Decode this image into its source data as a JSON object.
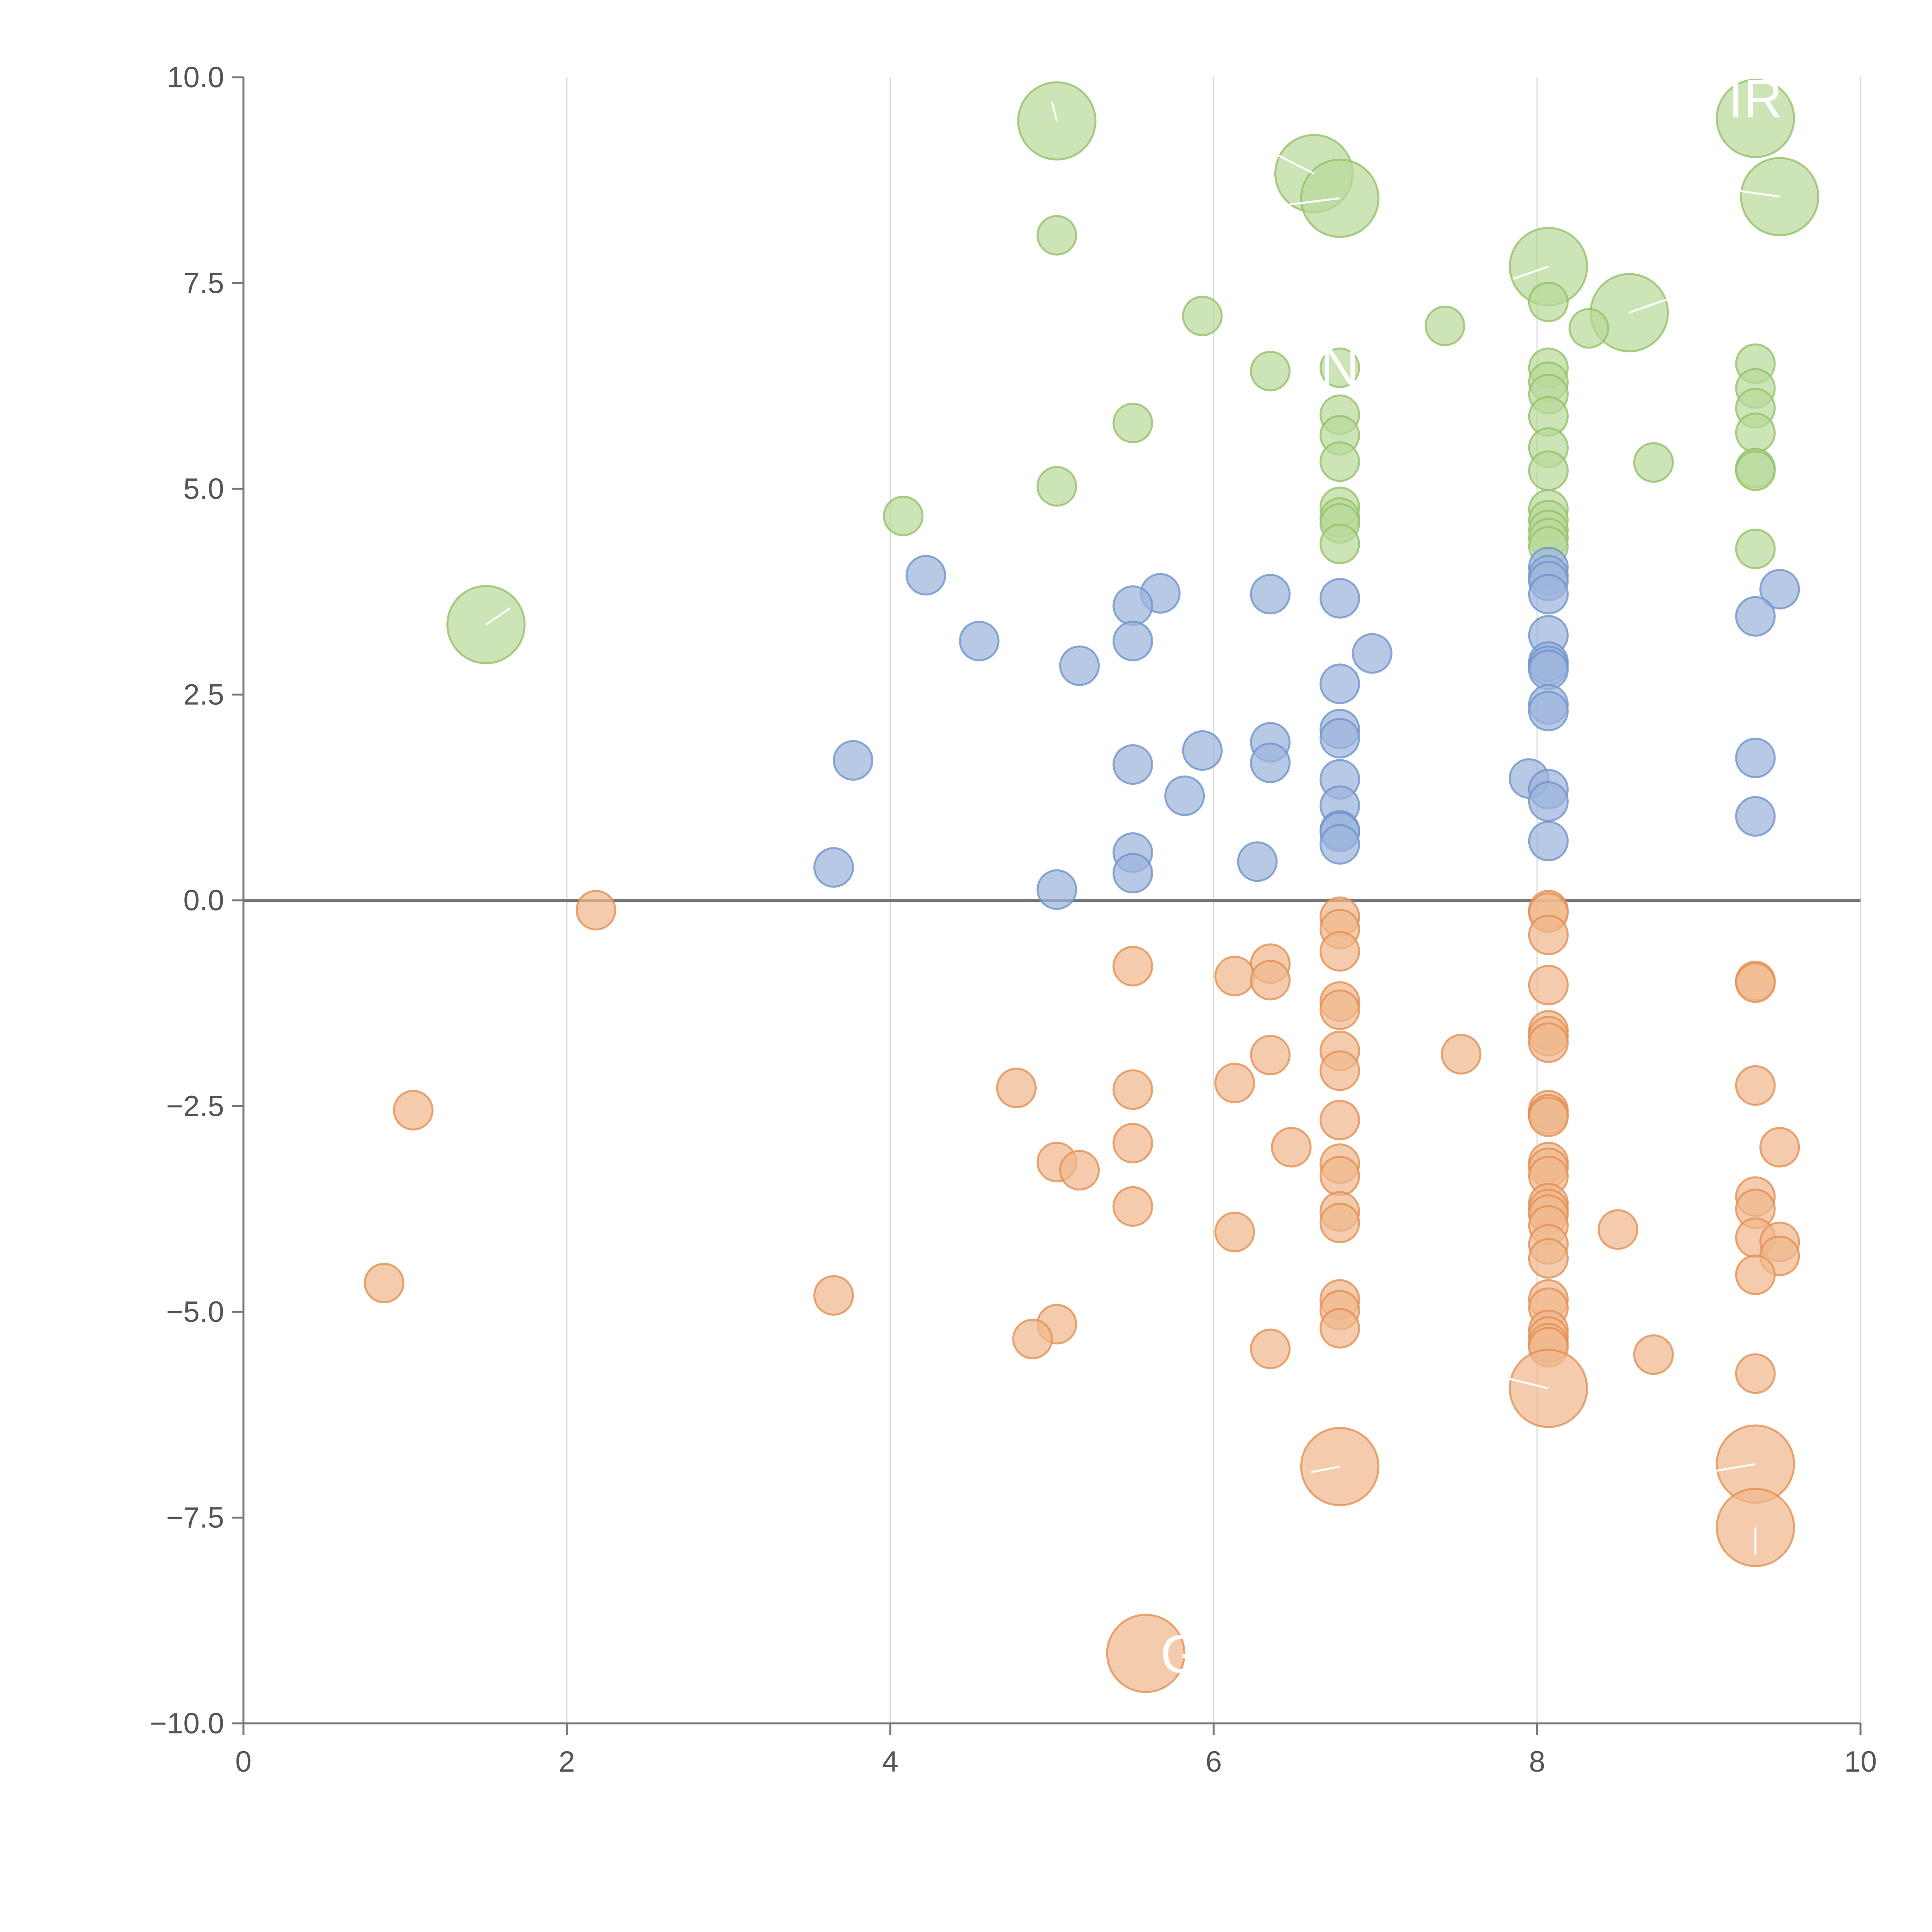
{
  "chart_data": {
    "type": "scatter",
    "title": "",
    "xlabel": "",
    "ylabel": "",
    "xlim": [
      0,
      10
    ],
    "ylim": [
      -10,
      10
    ],
    "xticks": [
      "0",
      "2",
      "4",
      "6",
      "8",
      "10"
    ],
    "yticks": [
      "10.0",
      "7.5",
      "5.0",
      "2.5",
      "0.0",
      "−2.5",
      "−5.0",
      "−7.5",
      "−10.0"
    ],
    "xtick_values": [
      0,
      2,
      4,
      6,
      8,
      10
    ],
    "ytick_values": [
      10,
      7.5,
      5,
      2.5,
      0,
      -2.5,
      -5,
      -7.5,
      -10
    ],
    "zero_line": 0,
    "grid": "vertical",
    "legend": "none",
    "colors": {
      "green": "#b9d99a",
      "green_stroke": "#93c068",
      "blue": "#9db4dd",
      "blue_stroke": "#6f93cc",
      "orange": "#f0b88e",
      "orange_stroke": "#e38f51"
    },
    "series": [
      {
        "name": "green",
        "points": [
          [
            5.03,
            9.47,
            2
          ],
          [
            6.62,
            8.83,
            2
          ],
          [
            6.78,
            8.53,
            2
          ],
          [
            9.35,
            9.5,
            2
          ],
          [
            9.5,
            8.55,
            2
          ],
          [
            5.03,
            8.08,
            1
          ],
          [
            8.07,
            7.7,
            2
          ],
          [
            8.57,
            7.14,
            2
          ],
          [
            8.07,
            7.27,
            1
          ],
          [
            5.93,
            7.1,
            1
          ],
          [
            7.43,
            6.98,
            1
          ],
          [
            8.32,
            6.95,
            1
          ],
          [
            6.35,
            6.43,
            1
          ],
          [
            6.78,
            6.47,
            1
          ],
          [
            8.07,
            6.47,
            1
          ],
          [
            9.35,
            6.52,
            1
          ],
          [
            8.07,
            6.3,
            1
          ],
          [
            9.35,
            6.22,
            1
          ],
          [
            8.07,
            6.15,
            1
          ],
          [
            9.35,
            5.98,
            1
          ],
          [
            6.78,
            5.9,
            1
          ],
          [
            8.07,
            5.88,
            1
          ],
          [
            5.5,
            5.8,
            1
          ],
          [
            6.78,
            5.65,
            1
          ],
          [
            9.35,
            5.68,
            1
          ],
          [
            8.07,
            5.5,
            1
          ],
          [
            6.78,
            5.33,
            1
          ],
          [
            8.72,
            5.32,
            1
          ],
          [
            8.07,
            5.22,
            1
          ],
          [
            9.35,
            5.25,
            1
          ],
          [
            9.35,
            5.22,
            1
          ],
          [
            5.03,
            5.03,
            1
          ],
          [
            6.78,
            4.78,
            1
          ],
          [
            8.07,
            4.75,
            1
          ],
          [
            4.08,
            4.67,
            1
          ],
          [
            6.78,
            4.65,
            1
          ],
          [
            8.07,
            4.62,
            1
          ],
          [
            6.78,
            4.58,
            1
          ],
          [
            8.07,
            4.5,
            1
          ],
          [
            8.07,
            4.4,
            1
          ],
          [
            6.78,
            4.33,
            1
          ],
          [
            8.07,
            4.3,
            1
          ],
          [
            9.35,
            4.27,
            1
          ],
          [
            1.5,
            3.35,
            2
          ]
        ]
      },
      {
        "name": "blue",
        "points": [
          [
            8.07,
            4.05,
            1
          ],
          [
            8.07,
            3.95,
            1
          ],
          [
            4.22,
            3.95,
            1
          ],
          [
            8.07,
            3.88,
            1
          ],
          [
            9.5,
            3.78,
            1
          ],
          [
            5.67,
            3.73,
            1
          ],
          [
            6.35,
            3.72,
            1
          ],
          [
            8.07,
            3.72,
            1
          ],
          [
            6.78,
            3.67,
            1
          ],
          [
            5.5,
            3.58,
            1
          ],
          [
            9.35,
            3.45,
            1
          ],
          [
            8.07,
            3.22,
            1
          ],
          [
            4.55,
            3.15,
            1
          ],
          [
            5.5,
            3.15,
            1
          ],
          [
            6.98,
            3.0,
            1
          ],
          [
            8.07,
            2.9,
            1
          ],
          [
            5.17,
            2.85,
            1
          ],
          [
            8.07,
            2.85,
            1
          ],
          [
            8.07,
            2.8,
            1
          ],
          [
            6.78,
            2.63,
            1
          ],
          [
            8.07,
            2.38,
            1
          ],
          [
            8.07,
            2.3,
            1
          ],
          [
            6.78,
            2.08,
            1
          ],
          [
            6.78,
            1.97,
            1
          ],
          [
            6.35,
            1.92,
            1
          ],
          [
            5.93,
            1.82,
            1
          ],
          [
            9.35,
            1.73,
            1
          ],
          [
            3.77,
            1.7,
            1
          ],
          [
            6.35,
            1.67,
            1
          ],
          [
            5.5,
            1.65,
            1
          ],
          [
            7.95,
            1.48,
            1
          ],
          [
            6.78,
            1.47,
            1
          ],
          [
            8.07,
            1.35,
            1
          ],
          [
            5.82,
            1.27,
            1
          ],
          [
            8.07,
            1.2,
            1
          ],
          [
            6.78,
            1.15,
            1
          ],
          [
            9.35,
            1.02,
            1
          ],
          [
            6.78,
            0.85,
            1
          ],
          [
            6.78,
            0.83,
            1
          ],
          [
            8.07,
            0.72,
            1
          ],
          [
            6.78,
            0.68,
            1
          ],
          [
            5.5,
            0.58,
            1
          ],
          [
            6.27,
            0.47,
            1
          ],
          [
            3.65,
            0.4,
            1
          ],
          [
            5.5,
            0.33,
            1
          ],
          [
            5.03,
            0.13,
            1
          ]
        ]
      },
      {
        "name": "orange",
        "points": [
          [
            2.18,
            -0.12,
            1
          ],
          [
            8.07,
            -0.12,
            1
          ],
          [
            8.07,
            -0.15,
            1
          ],
          [
            6.78,
            -0.2,
            1
          ],
          [
            6.78,
            -0.35,
            1
          ],
          [
            8.07,
            -0.42,
            1
          ],
          [
            6.78,
            -0.62,
            1
          ],
          [
            6.35,
            -0.77,
            1
          ],
          [
            5.5,
            -0.8,
            1
          ],
          [
            6.13,
            -0.92,
            1
          ],
          [
            6.35,
            -0.97,
            1
          ],
          [
            9.35,
            -0.98,
            1
          ],
          [
            9.35,
            -1.0,
            1
          ],
          [
            8.07,
            -1.03,
            1
          ],
          [
            6.78,
            -1.23,
            1
          ],
          [
            6.78,
            -1.33,
            1
          ],
          [
            8.07,
            -1.58,
            1
          ],
          [
            8.07,
            -1.65,
            1
          ],
          [
            8.07,
            -1.73,
            1
          ],
          [
            6.78,
            -1.83,
            1
          ],
          [
            7.53,
            -1.87,
            1
          ],
          [
            6.35,
            -1.88,
            1
          ],
          [
            6.78,
            -2.07,
            1
          ],
          [
            6.13,
            -2.22,
            1
          ],
          [
            9.35,
            -2.25,
            1
          ],
          [
            4.78,
            -2.28,
            1
          ],
          [
            5.5,
            -2.3,
            1
          ],
          [
            1.05,
            -2.55,
            1
          ],
          [
            8.07,
            -2.55,
            1
          ],
          [
            8.07,
            -2.6,
            1
          ],
          [
            8.07,
            -2.63,
            1
          ],
          [
            6.78,
            -2.67,
            1
          ],
          [
            5.5,
            -2.95,
            1
          ],
          [
            9.5,
            -3.0,
            1
          ],
          [
            6.48,
            -3.0,
            1
          ],
          [
            5.03,
            -3.18,
            1
          ],
          [
            8.07,
            -3.18,
            1
          ],
          [
            6.78,
            -3.2,
            1
          ],
          [
            8.07,
            -3.25,
            1
          ],
          [
            5.17,
            -3.28,
            1
          ],
          [
            8.07,
            -3.35,
            1
          ],
          [
            6.78,
            -3.35,
            1
          ],
          [
            9.35,
            -3.6,
            1
          ],
          [
            8.07,
            -3.68,
            1
          ],
          [
            5.5,
            -3.72,
            1
          ],
          [
            8.07,
            -3.75,
            1
          ],
          [
            6.78,
            -3.78,
            1
          ],
          [
            8.07,
            -3.82,
            1
          ],
          [
            9.35,
            -3.75,
            1
          ],
          [
            6.78,
            -3.92,
            1
          ],
          [
            8.07,
            -3.95,
            1
          ],
          [
            8.5,
            -4.0,
            1
          ],
          [
            6.13,
            -4.03,
            1
          ],
          [
            9.35,
            -4.1,
            1
          ],
          [
            9.5,
            -4.15,
            1
          ],
          [
            8.07,
            -4.18,
            1
          ],
          [
            9.5,
            -4.32,
            1
          ],
          [
            8.07,
            -4.35,
            1
          ],
          [
            9.35,
            -4.55,
            1
          ],
          [
            0.87,
            -4.65,
            1
          ],
          [
            3.65,
            -4.8,
            1
          ],
          [
            6.78,
            -4.85,
            1
          ],
          [
            8.07,
            -4.85,
            1
          ],
          [
            6.78,
            -4.98,
            1
          ],
          [
            8.07,
            -4.95,
            1
          ],
          [
            5.03,
            -5.15,
            1
          ],
          [
            6.78,
            -5.2,
            1
          ],
          [
            8.07,
            -5.22,
            1
          ],
          [
            8.07,
            -5.3,
            1
          ],
          [
            4.88,
            -5.33,
            1
          ],
          [
            8.07,
            -5.38,
            1
          ],
          [
            8.07,
            -5.43,
            1
          ],
          [
            6.35,
            -5.45,
            1
          ],
          [
            8.72,
            -5.52,
            1
          ],
          [
            9.35,
            -5.75,
            1
          ],
          [
            8.07,
            -5.93,
            2
          ],
          [
            6.78,
            -6.88,
            2
          ],
          [
            9.35,
            -6.85,
            2
          ],
          [
            9.35,
            -7.62,
            2
          ],
          [
            5.58,
            -9.15,
            2
          ]
        ]
      }
    ],
    "annotations": [
      {
        "label": "IR",
        "x": 9.35,
        "y": 9.5,
        "lx": 9.35,
        "ly": 9.75
      },
      {
        "label": "N",
        "x": 6.78,
        "y": 6.47,
        "lx": 6.78,
        "ly": 6.5
      },
      {
        "label": "G",
        "x": 5.58,
        "y": -9.15,
        "lx": 5.8,
        "ly": -9.15
      }
    ],
    "leader_lines": [
      [
        5.03,
        9.47,
        5.0,
        9.7
      ],
      [
        6.62,
        8.83,
        6.35,
        9.1
      ],
      [
        6.78,
        8.53,
        6.45,
        8.45
      ],
      [
        9.5,
        8.55,
        9.25,
        8.62
      ],
      [
        8.07,
        7.7,
        7.85,
        7.55
      ],
      [
        8.57,
        7.14,
        8.8,
        7.3
      ],
      [
        1.5,
        3.35,
        1.65,
        3.55
      ],
      [
        8.07,
        -5.93,
        7.8,
        -5.8
      ],
      [
        6.78,
        -6.88,
        6.6,
        -6.95
      ],
      [
        9.35,
        -6.85,
        9.05,
        -6.95
      ],
      [
        9.35,
        -7.62,
        9.35,
        -7.95
      ]
    ]
  }
}
